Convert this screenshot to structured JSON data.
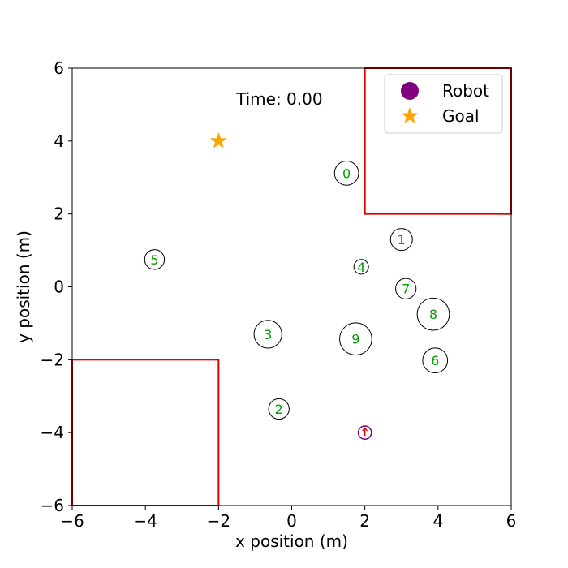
{
  "chart_data": {
    "type": "scatter",
    "xlabel": "x position (m)",
    "ylabel": "y position (m)",
    "xlim": [
      -6,
      6
    ],
    "ylim": [
      -6,
      6
    ],
    "xticks": [
      -6,
      -4,
      -2,
      0,
      2,
      4,
      6
    ],
    "yticks": [
      -6,
      -4,
      -2,
      0,
      2,
      4,
      6
    ],
    "time_label": "Time: 0.00",
    "legend": {
      "placement": "top-right",
      "entries": [
        {
          "label": "Robot",
          "marker": "circle",
          "color": "#800080"
        },
        {
          "label": "Goal",
          "marker": "star",
          "color": "#FFA500"
        }
      ]
    },
    "obstacles": [
      {
        "x_range": [
          2,
          6
        ],
        "y_range": [
          2,
          6
        ],
        "color": "#e00000"
      },
      {
        "x_range": [
          -6,
          -2
        ],
        "y_range": [
          -6,
          -2
        ],
        "color": "#e00000"
      }
    ],
    "robot": {
      "x": 2.0,
      "y": -4.0,
      "radius": 0.18,
      "color": "#800080"
    },
    "goal": {
      "x": -2.0,
      "y": 4.0,
      "color": "#FFA500"
    },
    "humans": [
      {
        "id": "0",
        "x": 1.5,
        "y": 3.12,
        "radius": 0.33
      },
      {
        "id": "1",
        "x": 3.0,
        "y": 1.3,
        "radius": 0.3
      },
      {
        "id": "2",
        "x": -0.35,
        "y": -3.35,
        "radius": 0.28
      },
      {
        "id": "3",
        "x": -0.65,
        "y": -1.3,
        "radius": 0.38
      },
      {
        "id": "4",
        "x": 1.9,
        "y": 0.55,
        "radius": 0.2
      },
      {
        "id": "5",
        "x": -3.75,
        "y": 0.75,
        "radius": 0.27
      },
      {
        "id": "6",
        "x": 3.92,
        "y": -2.02,
        "radius": 0.34
      },
      {
        "id": "7",
        "x": 3.12,
        "y": -0.05,
        "radius": 0.28
      },
      {
        "id": "8",
        "x": 3.87,
        "y": -0.75,
        "radius": 0.44
      },
      {
        "id": "9",
        "x": 1.75,
        "y": -1.43,
        "radius": 0.44
      }
    ],
    "label_color": "#00a000"
  }
}
